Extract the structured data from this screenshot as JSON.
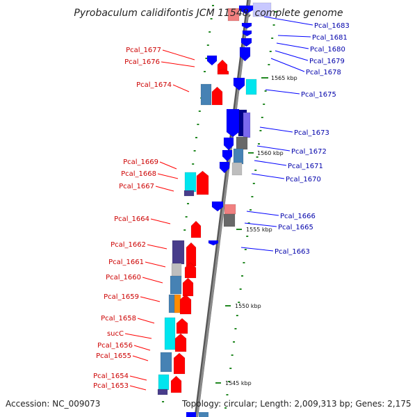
{
  "title": "Pyrobaculum calidifontis JCM 11548, complete genome",
  "footer": {
    "accession": "Accession: NC_009073",
    "summary": "Topology: circular; Length: 2,009,313 bp; Genes: 2,175"
  },
  "left_labels": [
    "Pcal_1677",
    "Pcal_1676",
    "Pcal_1674",
    "Pcal_1669",
    "Pcal_1668",
    "Pcal_1667",
    "Pcal_1664",
    "Pcal_1662",
    "Pcal_1661",
    "Pcal_1660",
    "Pcal_1659",
    "Pcal_1658",
    "sucC",
    "Pcal_1656",
    "Pcal_1655",
    "Pcal_1654",
    "Pcal_1653"
  ],
  "right_labels": [
    "Pcal_1683",
    "Pcal_1681",
    "Pcal_1680",
    "Pcal_1679",
    "Pcal_1678",
    "Pcal_1675",
    "Pcal_1673",
    "Pcal_1672",
    "Pcal_1671",
    "Pcal_1670",
    "Pcal_1666",
    "Pcal_1665",
    "Pcal_1663"
  ],
  "scale_ticks": [
    "1565 kbp",
    "1560 kbp",
    "1555 kbp",
    "1550 kbp",
    "1545 kbp"
  ],
  "colors": {
    "forward_strand": "#ff0000",
    "reverse_strand": "#0000ff",
    "backbone": "#8c8c8c",
    "tick_mark": "#228822",
    "cog_cyan": "#00e5ee",
    "cog_steelblue": "#4682b4",
    "cog_darkslate": "#483d8b",
    "cog_gray": "#bebebe",
    "cog_dimgray": "#696969",
    "cog_orange": "#ff8c00",
    "cog_pink": "#f08080",
    "cog_navy": "#00008b",
    "cog_purple": "#7b68ee",
    "cog_lavender": "#c8c8ff"
  }
}
